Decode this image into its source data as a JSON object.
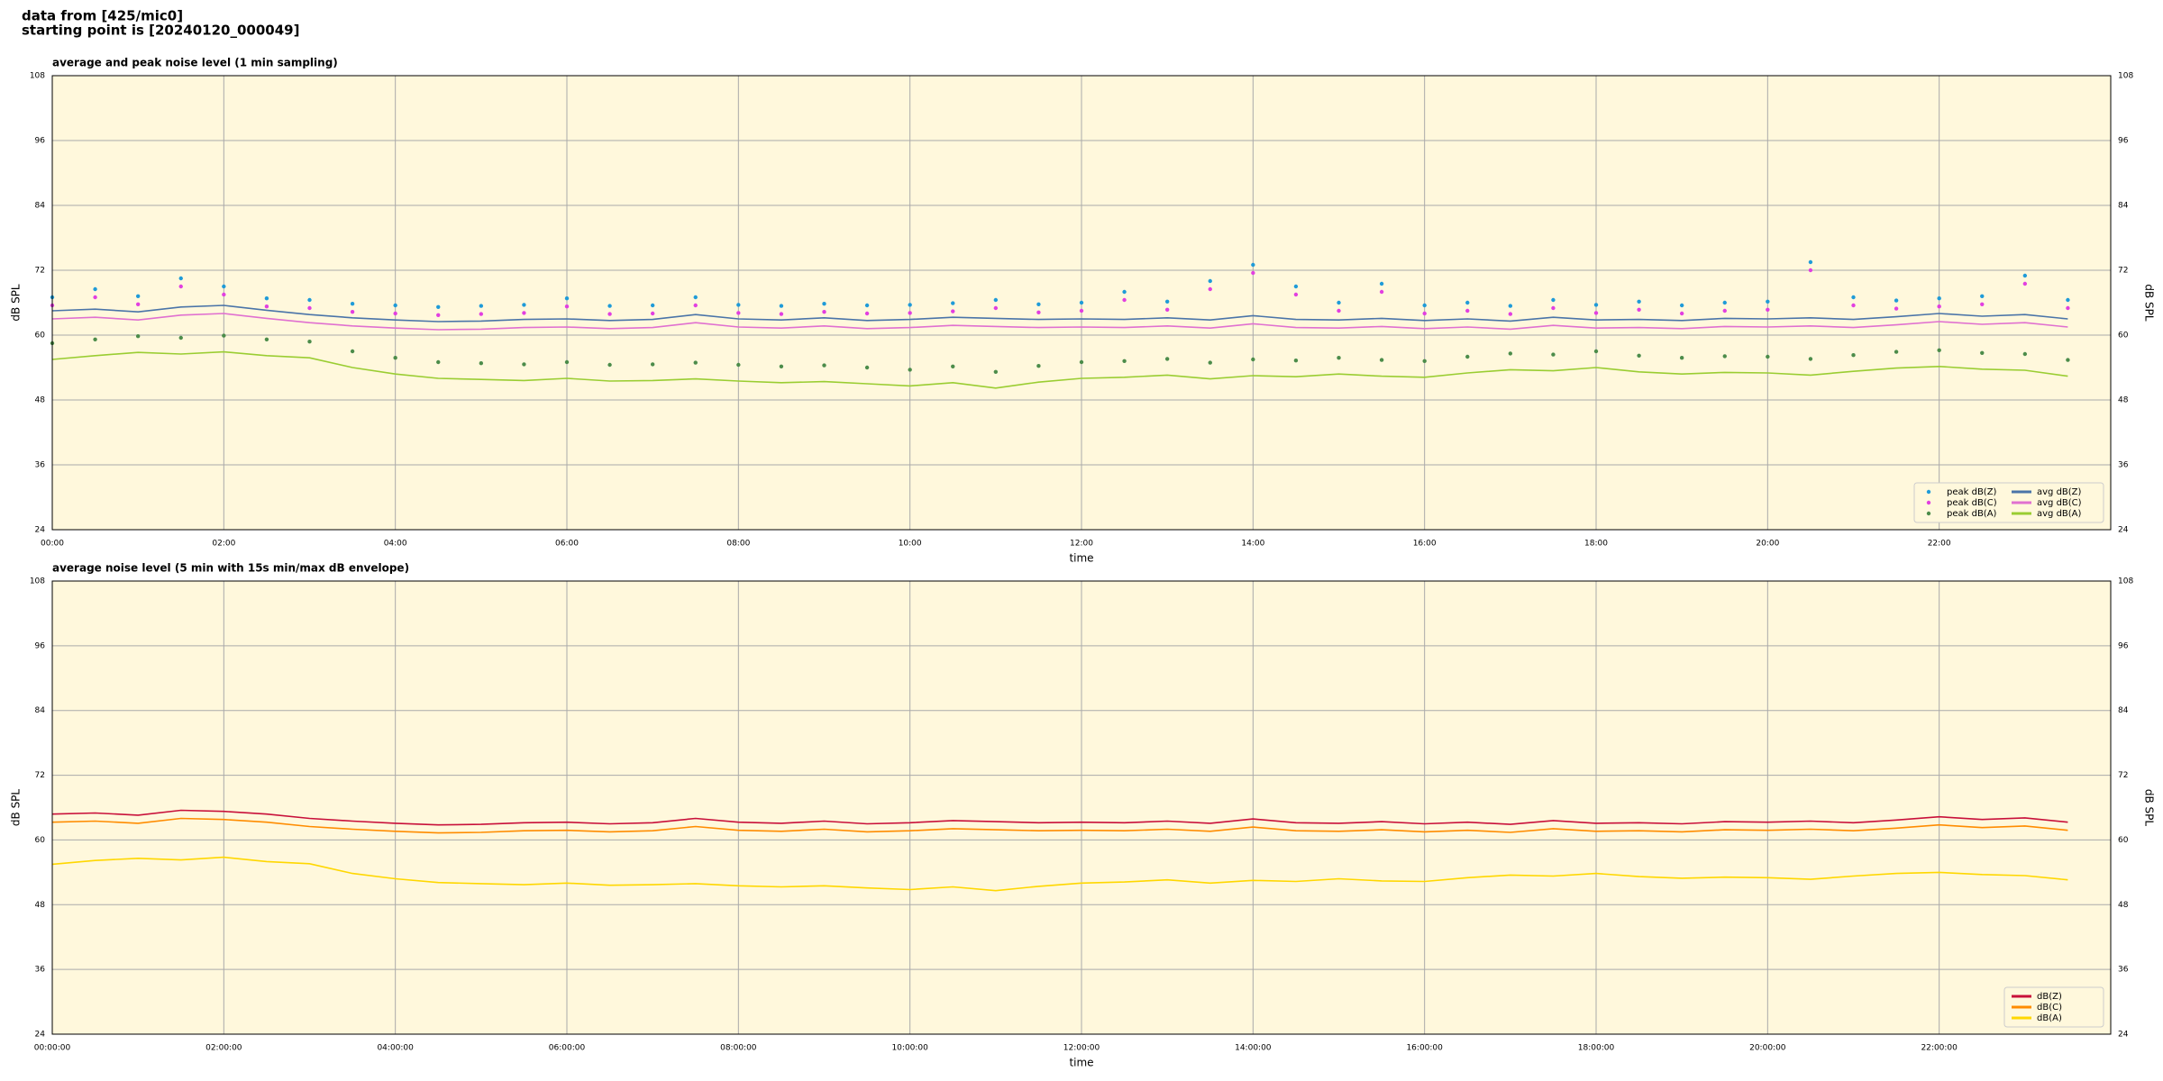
{
  "header": {
    "lines": [
      "data from [425/mic0]",
      "starting point is [20240120_000049]"
    ]
  },
  "chart_data": [
    {
      "type": "line",
      "title": "average and peak noise level (1 min sampling)",
      "x_label": "time",
      "y_label": "dB SPL",
      "x": [
        0,
        0.5,
        1,
        1.5,
        2,
        2.5,
        3,
        3.5,
        4,
        4.5,
        5,
        5.5,
        6,
        6.5,
        7,
        7.5,
        8,
        8.5,
        9,
        9.5,
        10,
        10.5,
        11,
        11.5,
        12,
        12.5,
        13,
        13.5,
        14,
        14.5,
        15,
        15.5,
        16,
        16.5,
        17,
        17.5,
        18,
        18.5,
        19,
        19.5,
        20,
        20.5,
        21,
        21.5,
        22,
        22.5,
        23,
        23.5
      ],
      "xlim": [
        0,
        24
      ],
      "ylim": [
        24,
        108
      ],
      "yticks": [
        24,
        36,
        48,
        60,
        72,
        84,
        96,
        108
      ],
      "xticks": [
        {
          "value": 0,
          "label": "00:00"
        },
        {
          "value": 2,
          "label": "02:00"
        },
        {
          "value": 4,
          "label": "04:00"
        },
        {
          "value": 6,
          "label": "06:00"
        },
        {
          "value": 8,
          "label": "08:00"
        },
        {
          "value": 10,
          "label": "10:00"
        },
        {
          "value": 12,
          "label": "12:00"
        },
        {
          "value": 14,
          "label": "14:00"
        },
        {
          "value": 16,
          "label": "16:00"
        },
        {
          "value": 18,
          "label": "18:00"
        },
        {
          "value": 20,
          "label": "20:00"
        },
        {
          "value": 22,
          "label": "22:00"
        }
      ],
      "grid": true,
      "legend_loc": "lower right",
      "legend_columns": 2,
      "series": [
        {
          "name": "peak dB(Z)",
          "color": "#1f9bd8",
          "mode": "markers",
          "values": [
            67.0,
            68.5,
            67.2,
            70.5,
            69.0,
            66.8,
            66.5,
            65.8,
            65.5,
            65.2,
            65.4,
            65.6,
            66.8,
            65.4,
            65.5,
            67.0,
            65.6,
            65.4,
            65.8,
            65.5,
            65.6,
            65.9,
            66.5,
            65.7,
            66.0,
            68.0,
            66.2,
            70.0,
            73.0,
            69.0,
            66.0,
            69.5,
            65.5,
            66.0,
            65.4,
            66.5,
            65.6,
            66.2,
            65.5,
            66.0,
            66.2,
            73.5,
            67.0,
            66.4,
            66.8,
            67.2,
            71.0,
            66.5
          ]
        },
        {
          "name": "peak dB(C)",
          "color": "#e23fe0",
          "mode": "markers",
          "values": [
            65.5,
            67.0,
            65.7,
            69.0,
            67.5,
            65.3,
            65.0,
            64.3,
            64.0,
            63.7,
            63.9,
            64.1,
            65.3,
            63.9,
            64.0,
            65.5,
            64.1,
            63.9,
            64.3,
            64.0,
            64.1,
            64.4,
            65.0,
            64.2,
            64.5,
            66.5,
            64.7,
            68.5,
            71.5,
            67.5,
            64.5,
            68.0,
            64.0,
            64.5,
            63.9,
            65.0,
            64.1,
            64.7,
            64.0,
            64.5,
            64.7,
            72.0,
            65.5,
            64.9,
            65.3,
            65.7,
            69.5,
            65.0
          ]
        },
        {
          "name": "peak dB(A)",
          "color": "#4c8c4a",
          "mode": "markers",
          "values": [
            58.5,
            59.2,
            59.8,
            59.5,
            59.9,
            59.2,
            58.8,
            57.0,
            55.8,
            55.0,
            54.8,
            54.6,
            55.0,
            54.5,
            54.6,
            54.9,
            54.5,
            54.2,
            54.4,
            54.0,
            53.6,
            54.2,
            53.2,
            54.3,
            55.0,
            55.2,
            55.6,
            54.9,
            55.5,
            55.3,
            55.8,
            55.4,
            55.2,
            56.0,
            56.6,
            56.4,
            57.0,
            56.2,
            55.8,
            56.1,
            56.0,
            55.6,
            56.3,
            56.9,
            57.2,
            56.7,
            56.5,
            55.4
          ]
        },
        {
          "name": "avg dB(Z)",
          "color": "#4a74a8",
          "mode": "lines",
          "values": [
            64.5,
            64.8,
            64.3,
            65.2,
            65.5,
            64.6,
            63.8,
            63.2,
            62.8,
            62.5,
            62.6,
            62.9,
            63.0,
            62.7,
            62.9,
            63.8,
            63.0,
            62.8,
            63.2,
            62.7,
            62.9,
            63.3,
            63.1,
            62.9,
            63.0,
            62.9,
            63.2,
            62.8,
            63.6,
            62.9,
            62.8,
            63.1,
            62.7,
            63.0,
            62.6,
            63.3,
            62.8,
            62.9,
            62.7,
            63.1,
            63.0,
            63.2,
            62.9,
            63.4,
            64.0,
            63.5,
            63.8,
            63.0
          ]
        },
        {
          "name": "avg dB(C)",
          "color": "#e070d0",
          "mode": "lines",
          "values": [
            63.0,
            63.3,
            62.8,
            63.7,
            64.0,
            63.1,
            62.3,
            61.7,
            61.3,
            61.0,
            61.1,
            61.4,
            61.5,
            61.2,
            61.4,
            62.3,
            61.5,
            61.3,
            61.7,
            61.2,
            61.4,
            61.8,
            61.6,
            61.4,
            61.5,
            61.4,
            61.7,
            61.3,
            62.1,
            61.4,
            61.3,
            61.6,
            61.2,
            61.5,
            61.1,
            61.8,
            61.3,
            61.4,
            61.2,
            61.6,
            61.5,
            61.7,
            61.4,
            61.9,
            62.5,
            62.0,
            62.3,
            61.5
          ]
        },
        {
          "name": "avg dB(A)",
          "color": "#9acd32",
          "mode": "lines",
          "values": [
            55.5,
            56.2,
            56.8,
            56.5,
            56.9,
            56.2,
            55.8,
            54.0,
            52.8,
            52.0,
            51.8,
            51.6,
            52.0,
            51.5,
            51.6,
            51.9,
            51.5,
            51.2,
            51.4,
            51.0,
            50.6,
            51.2,
            50.2,
            51.3,
            52.0,
            52.2,
            52.6,
            51.9,
            52.5,
            52.3,
            52.8,
            52.4,
            52.2,
            53.0,
            53.6,
            53.4,
            54.0,
            53.2,
            52.8,
            53.1,
            53.0,
            52.6,
            53.3,
            53.9,
            54.2,
            53.7,
            53.5,
            52.4
          ]
        }
      ]
    },
    {
      "type": "line",
      "title": "average noise level (5 min with 15s min/max dB envelope)",
      "x_label": "time",
      "y_label": "dB SPL",
      "x": [
        0,
        0.5,
        1,
        1.5,
        2,
        2.5,
        3,
        3.5,
        4,
        4.5,
        5,
        5.5,
        6,
        6.5,
        7,
        7.5,
        8,
        8.5,
        9,
        9.5,
        10,
        10.5,
        11,
        11.5,
        12,
        12.5,
        13,
        13.5,
        14,
        14.5,
        15,
        15.5,
        16,
        16.5,
        17,
        17.5,
        18,
        18.5,
        19,
        19.5,
        20,
        20.5,
        21,
        21.5,
        22,
        22.5,
        23,
        23.5
      ],
      "xlim": [
        0,
        24
      ],
      "ylim": [
        24,
        108
      ],
      "yticks": [
        24,
        36,
        48,
        60,
        72,
        84,
        96,
        108
      ],
      "xticks": [
        {
          "value": 0,
          "label": "00:00:00"
        },
        {
          "value": 2,
          "label": "02:00:00"
        },
        {
          "value": 4,
          "label": "04:00:00"
        },
        {
          "value": 6,
          "label": "06:00:00"
        },
        {
          "value": 8,
          "label": "08:00:00"
        },
        {
          "value": 10,
          "label": "10:00:00"
        },
        {
          "value": 12,
          "label": "12:00:00"
        },
        {
          "value": 14,
          "label": "14:00:00"
        },
        {
          "value": 16,
          "label": "16:00:00"
        },
        {
          "value": 18,
          "label": "18:00:00"
        },
        {
          "value": 20,
          "label": "20:00:00"
        },
        {
          "value": 22,
          "label": "22:00:00"
        }
      ],
      "grid": true,
      "legend_loc": "lower right",
      "legend_columns": 1,
      "series": [
        {
          "name": "dB(Z)",
          "color": "#c8103a",
          "mode": "lines",
          "values": [
            64.8,
            65.0,
            64.6,
            65.5,
            65.3,
            64.8,
            64.0,
            63.5,
            63.1,
            62.8,
            62.9,
            63.2,
            63.3,
            63.0,
            63.2,
            64.0,
            63.3,
            63.1,
            63.5,
            63.0,
            63.2,
            63.6,
            63.4,
            63.2,
            63.3,
            63.2,
            63.5,
            63.1,
            63.9,
            63.2,
            63.1,
            63.4,
            63.0,
            63.3,
            62.9,
            63.6,
            63.1,
            63.2,
            63.0,
            63.4,
            63.3,
            63.5,
            63.2,
            63.7,
            64.3,
            63.8,
            64.1,
            63.3
          ]
        },
        {
          "name": "dB(C)",
          "color": "#ff8c00",
          "mode": "lines",
          "values": [
            63.3,
            63.5,
            63.1,
            64.0,
            63.8,
            63.3,
            62.5,
            62.0,
            61.6,
            61.3,
            61.4,
            61.7,
            61.8,
            61.5,
            61.7,
            62.5,
            61.8,
            61.6,
            62.0,
            61.5,
            61.7,
            62.1,
            61.9,
            61.7,
            61.8,
            61.7,
            62.0,
            61.6,
            62.4,
            61.7,
            61.6,
            61.9,
            61.5,
            61.8,
            61.4,
            62.1,
            61.6,
            61.7,
            61.5,
            61.9,
            61.8,
            62.0,
            61.7,
            62.2,
            62.8,
            62.3,
            62.6,
            61.8
          ]
        },
        {
          "name": "dB(A)",
          "color": "#ffd700",
          "mode": "lines",
          "values": [
            55.5,
            56.2,
            56.6,
            56.3,
            56.8,
            56.0,
            55.6,
            53.8,
            52.8,
            52.1,
            51.9,
            51.7,
            52.0,
            51.6,
            51.7,
            51.9,
            51.5,
            51.3,
            51.5,
            51.1,
            50.8,
            51.3,
            50.6,
            51.4,
            52.0,
            52.2,
            52.6,
            52.0,
            52.5,
            52.3,
            52.8,
            52.4,
            52.3,
            53.0,
            53.5,
            53.3,
            53.8,
            53.2,
            52.9,
            53.1,
            53.0,
            52.7,
            53.3,
            53.8,
            54.0,
            53.6,
            53.4,
            52.6
          ]
        }
      ]
    }
  ]
}
